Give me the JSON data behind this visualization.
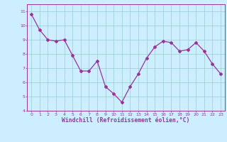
{
  "x": [
    0,
    1,
    2,
    3,
    4,
    5,
    6,
    7,
    8,
    9,
    10,
    11,
    12,
    13,
    14,
    15,
    16,
    17,
    18,
    19,
    20,
    21,
    22,
    23
  ],
  "y": [
    10.8,
    9.7,
    9.0,
    8.9,
    9.0,
    7.9,
    6.8,
    6.8,
    7.5,
    5.7,
    5.2,
    4.6,
    5.7,
    6.6,
    7.7,
    8.5,
    8.9,
    8.8,
    8.2,
    8.3,
    8.8,
    8.2,
    7.3,
    6.6
  ],
  "line_color": "#993399",
  "marker": "D",
  "markersize": 2.0,
  "linewidth": 0.9,
  "bg_color": "#cceeff",
  "grid_color": "#99cccc",
  "xlim": [
    -0.5,
    23.5
  ],
  "ylim": [
    4,
    11.5
  ],
  "yticks": [
    4,
    5,
    6,
    7,
    8,
    9,
    10,
    11
  ],
  "xticks": [
    0,
    1,
    2,
    3,
    4,
    5,
    6,
    7,
    8,
    9,
    10,
    11,
    12,
    13,
    14,
    15,
    16,
    17,
    18,
    19,
    20,
    21,
    22,
    23
  ],
  "xlabel": "Windchill (Refroidissement éolien,°C)",
  "xlabel_color": "#993399",
  "tick_color": "#993399",
  "spine_color": "#993399",
  "tick_fontsize": 4.5,
  "xlabel_fontsize": 5.8
}
